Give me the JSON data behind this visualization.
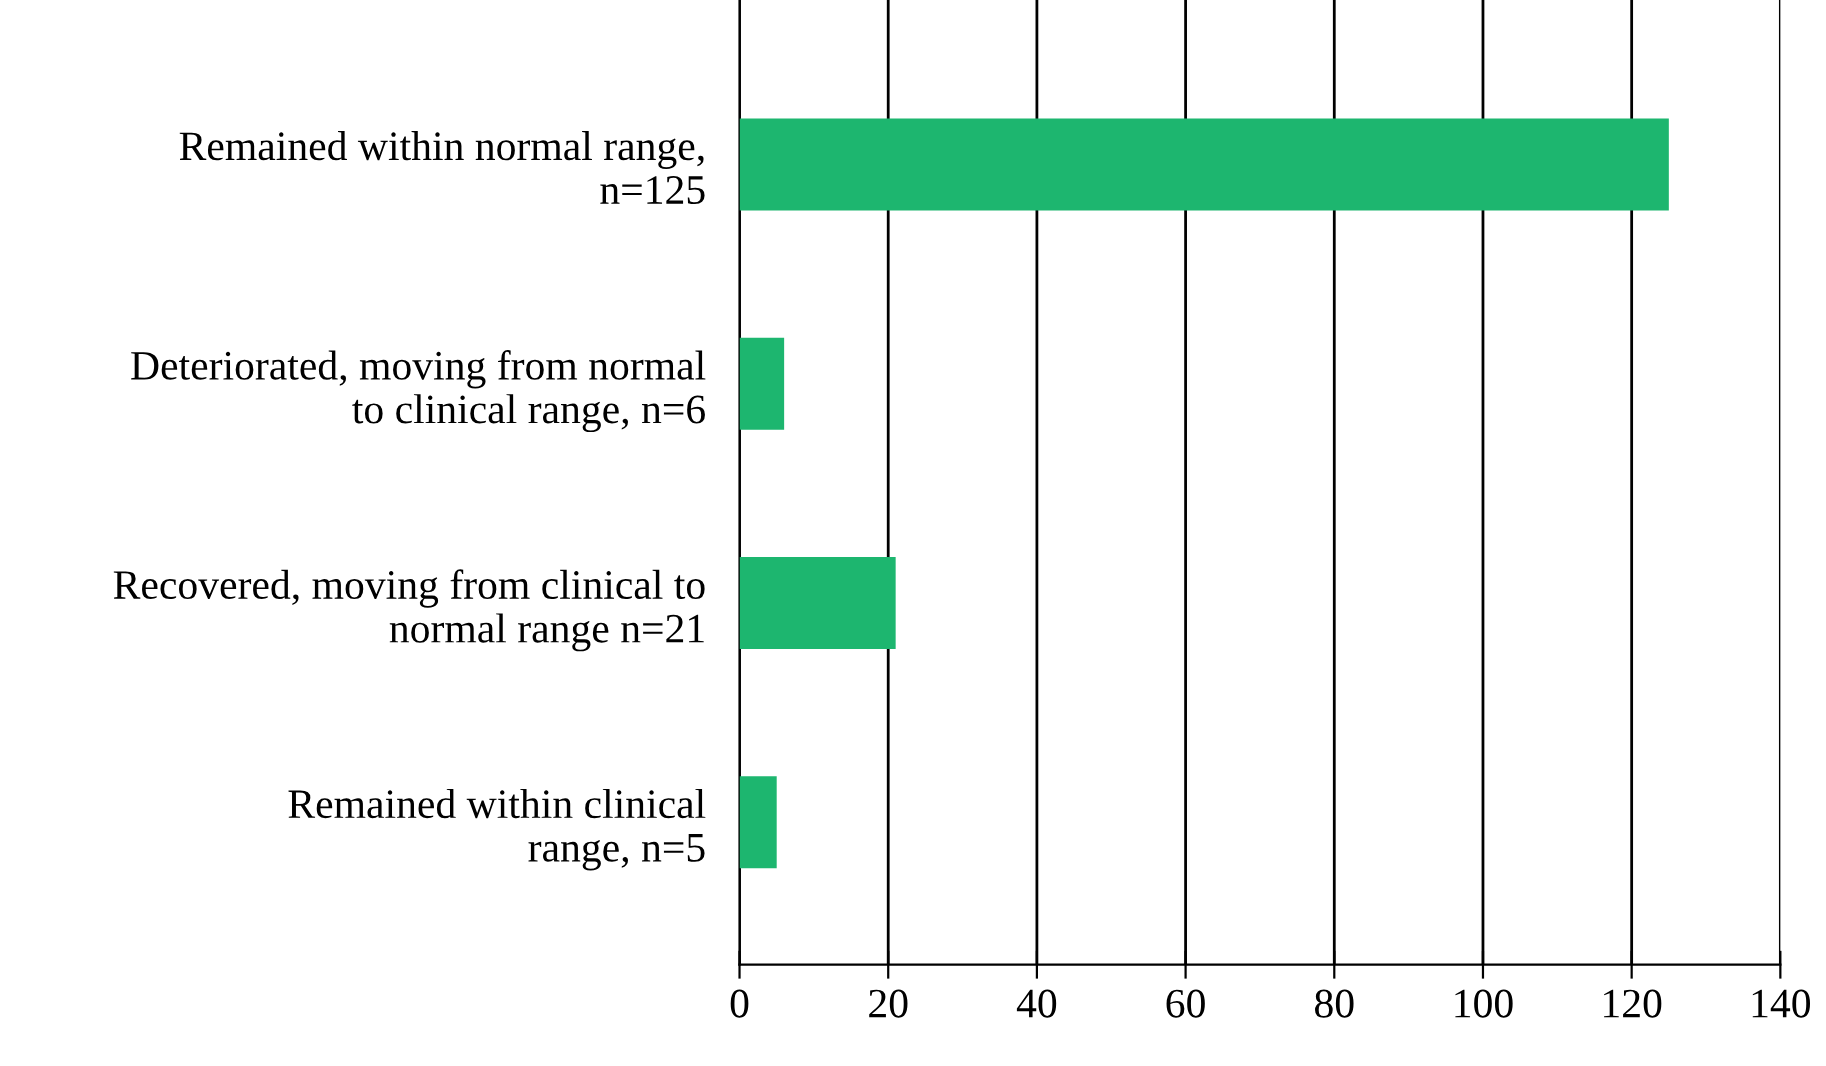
{
  "chart_data": {
    "type": "bar",
    "orientation": "horizontal",
    "categories": [
      "Remained within normal range,\nn=125",
      "Deteriorated, moving from normal\nto clinical range, n=6",
      "Recovered, moving from clinical to\nnormal range n=21",
      "Remained within clinical\nrange, n=5"
    ],
    "values": [
      125,
      6,
      21,
      5
    ],
    "color": "#1db66f",
    "xlim": [
      0,
      140
    ],
    "xticks": [
      0,
      20,
      40,
      60,
      80,
      100,
      120,
      140
    ],
    "grid": "x",
    "legend": false
  }
}
